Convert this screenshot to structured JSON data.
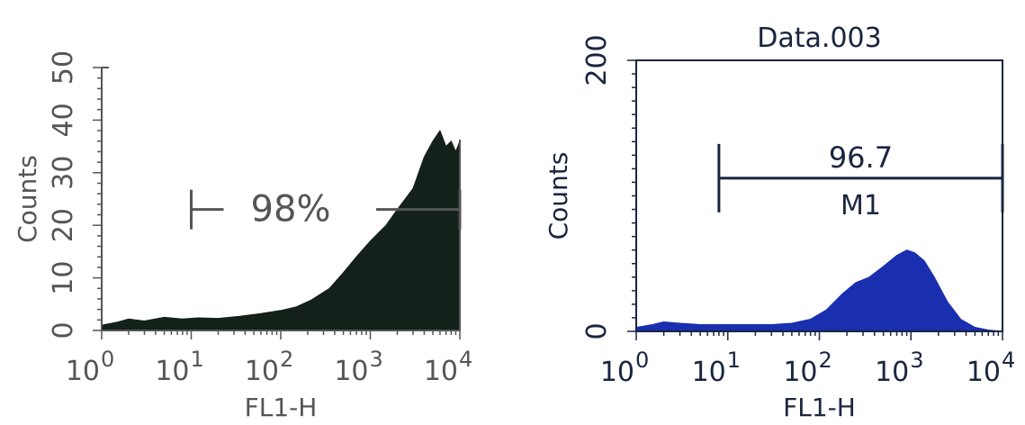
{
  "chart_data": [
    {
      "type": "area",
      "title": "",
      "xlabel": "FL1-H",
      "ylabel": "Counts",
      "x_scale": "log",
      "xlim": [
        1,
        10000
      ],
      "ylim": [
        0,
        50
      ],
      "x_tick_labels": [
        {
          "base": "10",
          "exp": "0"
        },
        {
          "base": "10",
          "exp": "1"
        },
        {
          "base": "10",
          "exp": "2"
        },
        {
          "base": "10",
          "exp": "3"
        },
        {
          "base": "10",
          "exp": "4"
        }
      ],
      "y_tick_labels": [
        "0",
        "10",
        "20",
        "30",
        "40",
        "50"
      ],
      "fill_color": "#14201a",
      "gate": {
        "label": "98%",
        "start": 10,
        "end": 10000,
        "level": 23
      },
      "series": [
        {
          "values": [
            [
              1,
              1
            ],
            [
              1.5,
              1.6
            ],
            [
              2,
              2.2
            ],
            [
              3,
              1.8
            ],
            [
              5,
              2.5
            ],
            [
              8,
              2.2
            ],
            [
              12,
              2.4
            ],
            [
              20,
              2.3
            ],
            [
              35,
              2.7
            ],
            [
              60,
              3.2
            ],
            [
              100,
              3.8
            ],
            [
              150,
              4.5
            ],
            [
              220,
              5.8
            ],
            [
              350,
              8
            ],
            [
              500,
              11
            ],
            [
              700,
              14
            ],
            [
              1000,
              17
            ],
            [
              1500,
              20
            ],
            [
              2000,
              23
            ],
            [
              3000,
              27
            ],
            [
              4000,
              33
            ],
            [
              5000,
              36
            ],
            [
              6000,
              38
            ],
            [
              7000,
              35
            ],
            [
              8000,
              36
            ],
            [
              9000,
              34
            ],
            [
              10000,
              36
            ]
          ]
        }
      ]
    },
    {
      "type": "area",
      "title": "Data.003",
      "xlabel": "FL1-H",
      "ylabel": "Counts",
      "x_scale": "log",
      "xlim": [
        1,
        10000
      ],
      "ylim": [
        0,
        200
      ],
      "x_tick_labels": [
        {
          "base": "10",
          "exp": "0"
        },
        {
          "base": "10",
          "exp": "1"
        },
        {
          "base": "10",
          "exp": "2"
        },
        {
          "base": "10",
          "exp": "3"
        },
        {
          "base": "10",
          "exp": "4"
        }
      ],
      "y_tick_labels": [
        "0",
        "200"
      ],
      "fill_color": "#1a2fb0",
      "gate": {
        "label": "96.7",
        "name": "M1",
        "start": 8,
        "end": 10000,
        "level": 113
      },
      "series": [
        {
          "values": [
            [
              1,
              3
            ],
            [
              1.5,
              5
            ],
            [
              2,
              7
            ],
            [
              3,
              6
            ],
            [
              5,
              5
            ],
            [
              8,
              5
            ],
            [
              12,
              5
            ],
            [
              20,
              5
            ],
            [
              30,
              5
            ],
            [
              50,
              6
            ],
            [
              80,
              9
            ],
            [
              120,
              16
            ],
            [
              180,
              28
            ],
            [
              250,
              36
            ],
            [
              350,
              40
            ],
            [
              500,
              48
            ],
            [
              700,
              56
            ],
            [
              900,
              60
            ],
            [
              1100,
              58
            ],
            [
              1400,
              52
            ],
            [
              1800,
              40
            ],
            [
              2500,
              22
            ],
            [
              3500,
              9
            ],
            [
              5000,
              3
            ],
            [
              7000,
              1
            ],
            [
              10000,
              0
            ]
          ]
        }
      ]
    }
  ]
}
